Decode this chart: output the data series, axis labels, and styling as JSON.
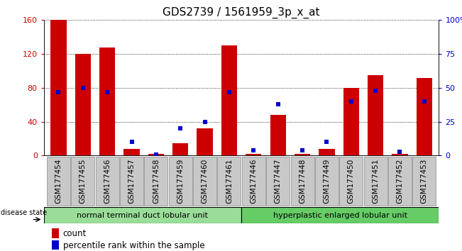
{
  "title": "GDS2739 / 1561959_3p_x_at",
  "samples": [
    "GSM177454",
    "GSM177455",
    "GSM177456",
    "GSM177457",
    "GSM177458",
    "GSM177459",
    "GSM177460",
    "GSM177461",
    "GSM177446",
    "GSM177447",
    "GSM177448",
    "GSM177449",
    "GSM177450",
    "GSM177451",
    "GSM177452",
    "GSM177453"
  ],
  "counts": [
    160,
    120,
    128,
    8,
    2,
    15,
    32,
    130,
    2,
    48,
    2,
    8,
    80,
    95,
    2,
    92
  ],
  "percentiles": [
    47,
    50,
    47,
    10,
    1,
    20,
    25,
    47,
    4,
    38,
    4,
    10,
    40,
    48,
    3,
    40
  ],
  "group1_label": "normal terminal duct lobular unit",
  "group2_label": "hyperplastic enlarged lobular unit",
  "group1_count": 8,
  "group2_count": 8,
  "ylim_left": [
    0,
    160
  ],
  "ylim_right": [
    0,
    100
  ],
  "yticks_left": [
    0,
    40,
    80,
    120,
    160
  ],
  "yticks_right": [
    0,
    25,
    50,
    75,
    100
  ],
  "ytick_labels_right": [
    "0",
    "25",
    "50",
    "75",
    "100%"
  ],
  "bar_color": "#cc0000",
  "dot_color": "#0000cc",
  "tick_bg": "#c8c8c8",
  "group1_color": "#99dd99",
  "group2_color": "#66cc66",
  "legend_count_label": "count",
  "legend_pct_label": "percentile rank within the sample",
  "title_fontsize": 11,
  "axis_fontsize": 8,
  "label_fontsize": 7.5
}
